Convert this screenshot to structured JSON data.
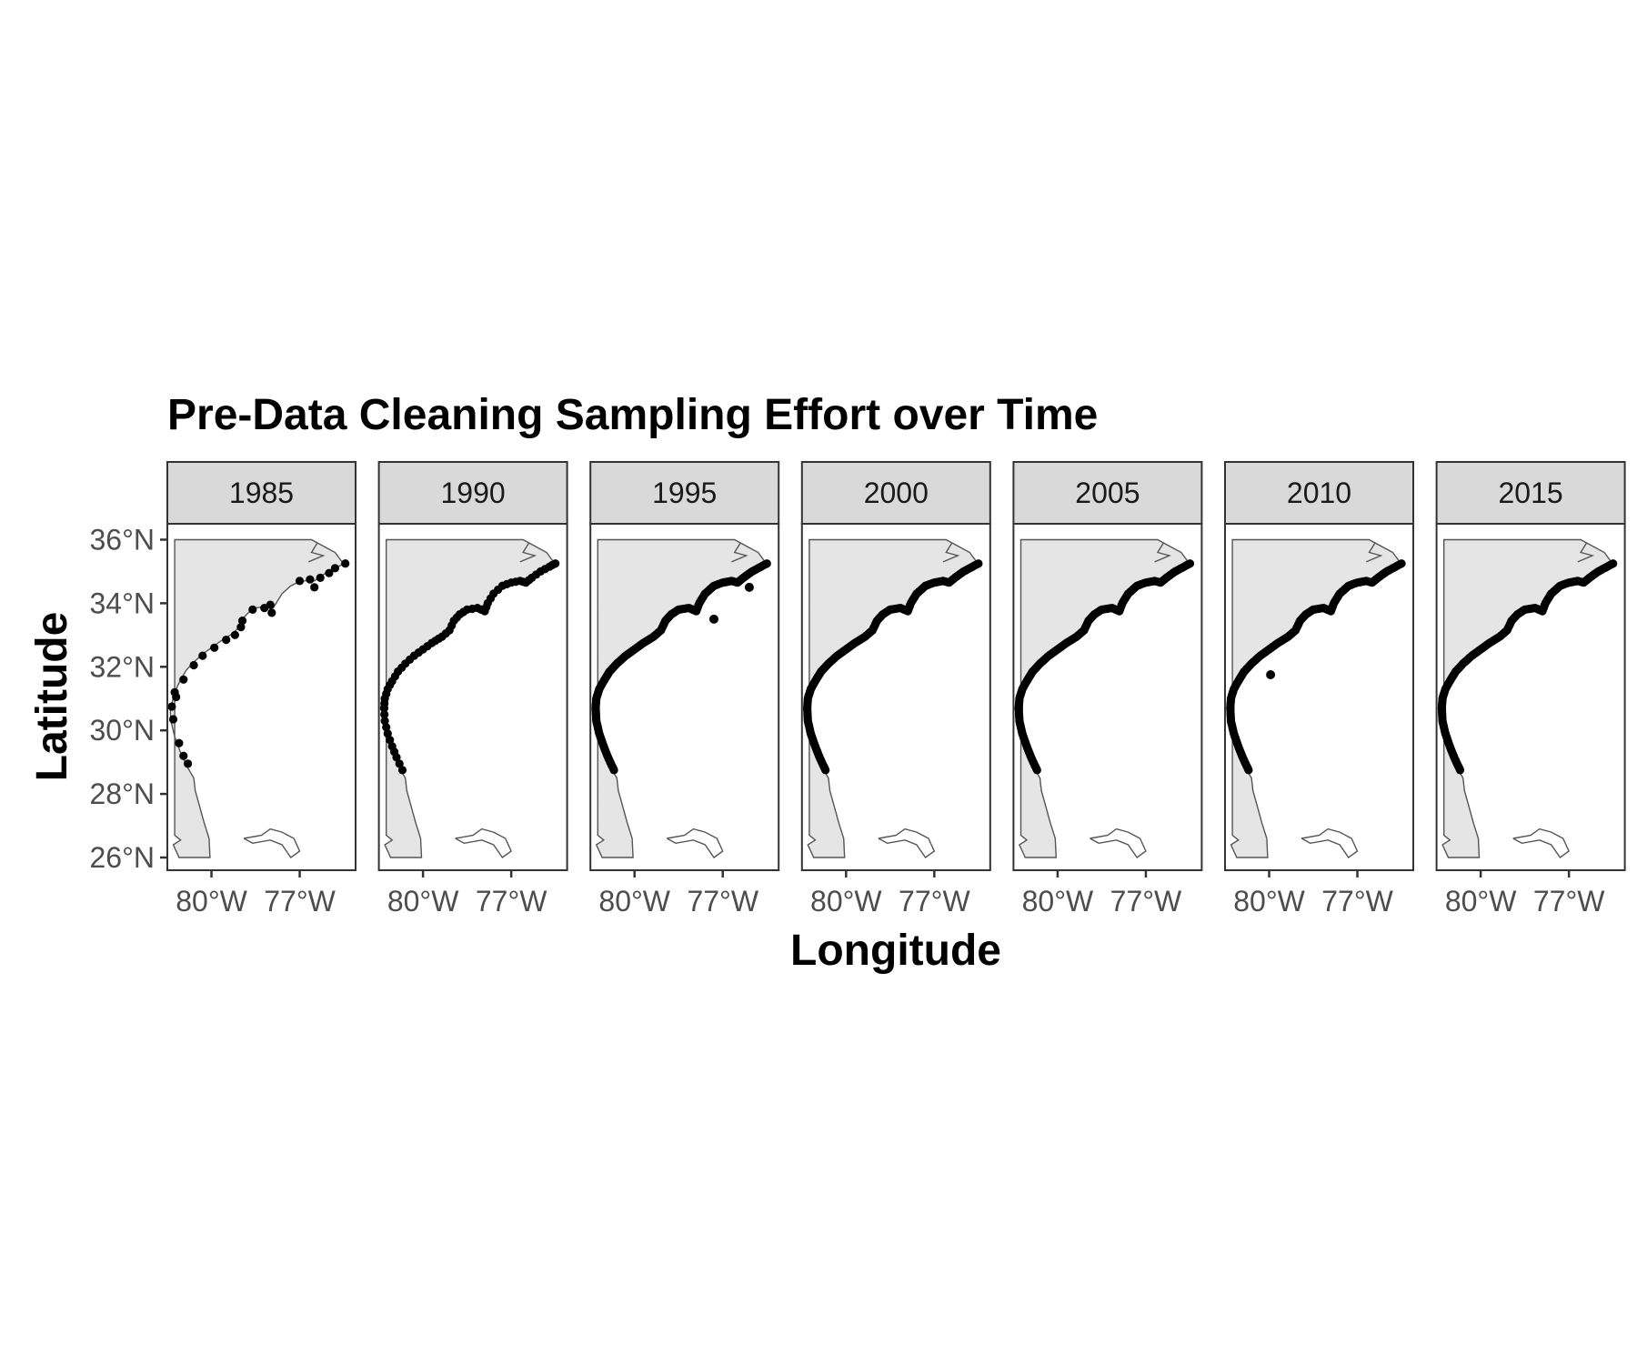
{
  "chart_data": {
    "type": "scatter",
    "title": "Pre-Data Cleaning Sampling Effort over Time",
    "xlabel": "Longitude",
    "ylabel": "Latitude",
    "facets": [
      "1985",
      "1990",
      "1995",
      "2000",
      "2005",
      "2010",
      "2015"
    ],
    "xlim": [
      -81.5,
      -75.1
    ],
    "ylim": [
      25.6,
      36.5
    ],
    "x_ticks": [
      -80,
      -77
    ],
    "x_tick_labels": [
      "80°W",
      "77°W"
    ],
    "y_ticks": [
      26,
      28,
      30,
      32,
      34,
      36
    ],
    "y_tick_labels": [
      "26°N",
      "28°N",
      "30°N",
      "32°N",
      "34°N",
      "36°N"
    ],
    "grid": false,
    "coastline_track": [
      [
        -81.32,
        30.7
      ],
      [
        -81.3,
        31.0
      ],
      [
        -81.2,
        31.3
      ],
      [
        -81.05,
        31.55
      ],
      [
        -80.85,
        31.85
      ],
      [
        -80.6,
        32.1
      ],
      [
        -80.3,
        32.35
      ],
      [
        -80.0,
        32.55
      ],
      [
        -79.7,
        32.75
      ],
      [
        -79.35,
        32.95
      ],
      [
        -79.1,
        33.15
      ],
      [
        -78.95,
        33.45
      ],
      [
        -78.75,
        33.65
      ],
      [
        -78.5,
        33.8
      ],
      [
        -78.15,
        33.85
      ],
      [
        -77.9,
        33.75
      ],
      [
        -77.8,
        34.0
      ],
      [
        -77.6,
        34.3
      ],
      [
        -77.3,
        34.55
      ],
      [
        -77.0,
        34.65
      ],
      [
        -76.7,
        34.7
      ],
      [
        -76.5,
        34.65
      ],
      [
        -76.3,
        34.8
      ],
      [
        -76.0,
        35.0
      ],
      [
        -75.7,
        35.15
      ],
      [
        -75.5,
        35.25
      ]
    ],
    "florida_track": [
      [
        -81.32,
        30.7
      ],
      [
        -81.3,
        30.3
      ],
      [
        -81.2,
        29.9
      ],
      [
        -81.05,
        29.5
      ],
      [
        -80.9,
        29.15
      ],
      [
        -80.7,
        28.75
      ]
    ],
    "sparse_points_1985": [
      [
        -81.35,
        30.75
      ],
      [
        -81.3,
        30.35
      ],
      [
        -81.1,
        29.6
      ],
      [
        -80.95,
        29.2
      ],
      [
        -80.8,
        28.95
      ],
      [
        -81.2,
        31.05
      ],
      [
        -81.25,
        31.2
      ],
      [
        -80.95,
        31.6
      ],
      [
        -80.6,
        32.05
      ],
      [
        -80.3,
        32.35
      ],
      [
        -79.9,
        32.6
      ],
      [
        -79.5,
        32.85
      ],
      [
        -79.2,
        33.0
      ],
      [
        -79.0,
        33.25
      ],
      [
        -78.95,
        33.45
      ],
      [
        -78.6,
        33.8
      ],
      [
        -78.2,
        33.85
      ],
      [
        -78.0,
        33.95
      ],
      [
        -77.95,
        33.7
      ],
      [
        -77.0,
        34.7
      ],
      [
        -76.65,
        34.75
      ],
      [
        -76.5,
        34.5
      ],
      [
        -76.3,
        34.8
      ],
      [
        -76.0,
        34.95
      ],
      [
        -75.8,
        35.1
      ],
      [
        -75.45,
        35.25
      ]
    ],
    "outlier_points": {
      "1995": [
        [
          -77.3,
          33.5
        ],
        [
          -76.1,
          34.5
        ]
      ],
      "2010": [
        [
          -79.95,
          31.75
        ]
      ]
    }
  }
}
